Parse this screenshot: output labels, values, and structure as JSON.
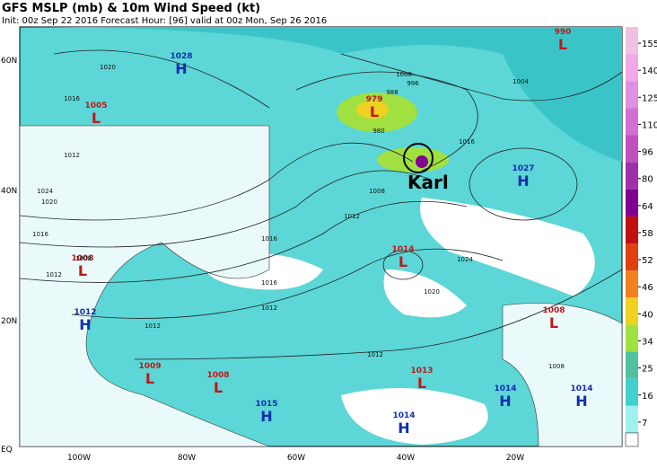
{
  "header": {
    "title": "GFS MSLP (mb) & 10m Wind Speed (kt)",
    "subtitle": "Init: 00z Sep 22 2016   Forecast Hour: [96]   valid at 00z Mon, Sep 26 2016"
  },
  "map": {
    "lat_labels": [
      "60N",
      "40N",
      "20N",
      "EQ"
    ],
    "lon_labels": [
      "100W",
      "80W",
      "60W",
      "40W",
      "20W"
    ],
    "annotation": "Karl",
    "centers": [
      {
        "type": "H",
        "value": "1028"
      },
      {
        "type": "L",
        "value": "1005"
      },
      {
        "type": "L",
        "value": "990"
      },
      {
        "type": "L",
        "value": "979"
      },
      {
        "type": "H",
        "value": "1027"
      },
      {
        "type": "L",
        "value": "1014"
      },
      {
        "type": "L",
        "value": "1008"
      },
      {
        "type": "H",
        "value": "1012"
      },
      {
        "type": "L",
        "value": "1008"
      },
      {
        "type": "L",
        "value": "1009"
      },
      {
        "type": "L",
        "value": "1008"
      },
      {
        "type": "H",
        "value": "1015"
      },
      {
        "type": "L",
        "value": "1013"
      },
      {
        "type": "H",
        "value": "1014"
      },
      {
        "type": "H",
        "value": "1014"
      },
      {
        "type": "H",
        "value": "1014"
      }
    ],
    "isobar_labels": [
      "1020",
      "1016",
      "1012",
      "1024",
      "1020",
      "1016",
      "1016",
      "1016",
      "1012",
      "1008",
      "1024",
      "1020",
      "1016",
      "1012",
      "1000",
      "1004",
      "988",
      "996",
      "980",
      "1008",
      "1012",
      "1012",
      "1012",
      "1008"
    ]
  },
  "colorbar": {
    "ticks": [
      155,
      140,
      125,
      110,
      96,
      80,
      64,
      58,
      52,
      46,
      40,
      34,
      25,
      16,
      7
    ],
    "colors": [
      "#f0c0e0",
      "#f0a8e8",
      "#e090e0",
      "#d070d0",
      "#c050c0",
      "#a030a8",
      "#800090",
      "#c01010",
      "#e04010",
      "#f08020",
      "#f0d020",
      "#a0e040",
      "#50c0a0",
      "#40d0d0",
      "#a0f0f0"
    ]
  }
}
